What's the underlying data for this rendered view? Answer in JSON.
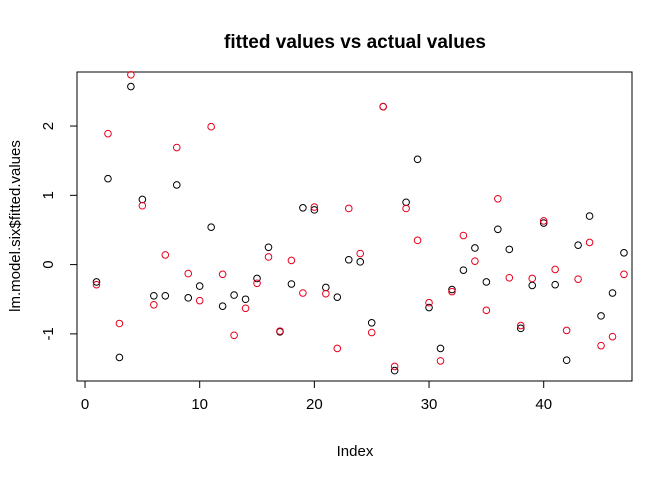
{
  "chart_data": {
    "type": "scatter",
    "title": "fitted values vs actual values",
    "xlabel": "Index",
    "ylabel": "lm.model.six$fitted.values",
    "xlim": [
      -0.7,
      47.7
    ],
    "ylim": [
      -1.68,
      2.78
    ],
    "x_ticks": [
      0,
      10,
      20,
      30,
      40
    ],
    "y_ticks": [
      -1,
      0,
      1,
      2
    ],
    "grid": false,
    "legend": "none",
    "series": [
      {
        "color": "#000000",
        "x": [
          1,
          2,
          3,
          4,
          5,
          6,
          7,
          8,
          9,
          10,
          11,
          12,
          13,
          14,
          15,
          16,
          17,
          18,
          19,
          20,
          21,
          22,
          23,
          24,
          25,
          26,
          27,
          28,
          29,
          30,
          31,
          32,
          33,
          34,
          35,
          36,
          37,
          38,
          39,
          40,
          41,
          42,
          43,
          44,
          45,
          46,
          47
        ],
        "y": [
          -0.25,
          1.24,
          -1.34,
          2.57,
          0.94,
          -0.45,
          -0.45,
          1.15,
          -0.48,
          -0.31,
          0.54,
          -0.6,
          -0.44,
          -0.5,
          -0.2,
          0.25,
          -0.97,
          -0.28,
          0.82,
          0.79,
          -0.33,
          -0.47,
          0.07,
          0.04,
          -0.84,
          2.28,
          -1.53,
          0.9,
          1.52,
          -0.62,
          -1.21,
          -0.36,
          -0.08,
          0.24,
          -0.25,
          0.51,
          0.22,
          -0.92,
          -0.3,
          0.6,
          -0.29,
          -1.38,
          0.28,
          0.7,
          -0.74,
          -0.41,
          0.17
        ]
      },
      {
        "color": "#e8001c",
        "x": [
          1,
          2,
          3,
          4,
          5,
          6,
          7,
          8,
          9,
          10,
          11,
          12,
          13,
          14,
          15,
          16,
          17,
          18,
          19,
          20,
          21,
          22,
          23,
          24,
          25,
          26,
          27,
          28,
          29,
          30,
          31,
          32,
          33,
          34,
          35,
          36,
          37,
          38,
          39,
          40,
          41,
          42,
          43,
          44,
          45,
          46,
          47
        ],
        "y": [
          -0.29,
          1.89,
          -0.85,
          2.74,
          0.85,
          -0.58,
          0.14,
          1.69,
          -0.13,
          -0.52,
          1.99,
          -0.14,
          -1.02,
          -0.63,
          -0.27,
          0.11,
          -0.96,
          0.06,
          -0.41,
          0.83,
          -0.42,
          -1.21,
          0.81,
          0.16,
          -0.98,
          2.28,
          -1.47,
          0.81,
          0.35,
          -0.55,
          -1.39,
          -0.39,
          0.42,
          0.05,
          -0.66,
          0.95,
          -0.19,
          -0.88,
          -0.2,
          0.63,
          -0.07,
          -0.95,
          -0.21,
          0.32,
          -1.17,
          -1.04,
          -0.14
        ]
      }
    ]
  }
}
